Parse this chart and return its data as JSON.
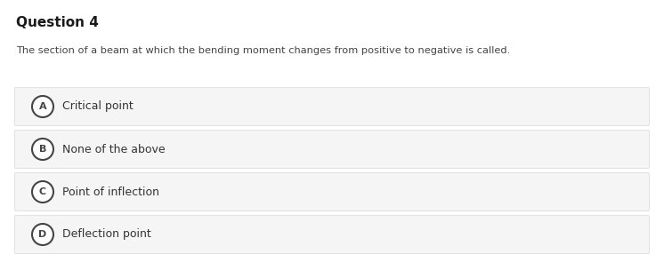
{
  "title": "Question 4",
  "question": "The section of a beam at which the bending moment changes from positive to negative is called.",
  "options": [
    {
      "letter": "A",
      "text": "Critical point"
    },
    {
      "letter": "B",
      "text": "None of the above"
    },
    {
      "letter": "C",
      "text": "Point of inflection"
    },
    {
      "letter": "D",
      "text": "Deflection point"
    }
  ],
  "bg_color": "#ffffff",
  "option_bg_color": "#f5f5f5",
  "option_border_color": "#dddddd",
  "title_color": "#1a1a1a",
  "question_color": "#444444",
  "option_text_color": "#333333",
  "circle_edge_color": "#444444",
  "circle_face_color": "#ffffff",
  "fig_width": 7.46,
  "fig_height": 3.13,
  "dpi": 100
}
